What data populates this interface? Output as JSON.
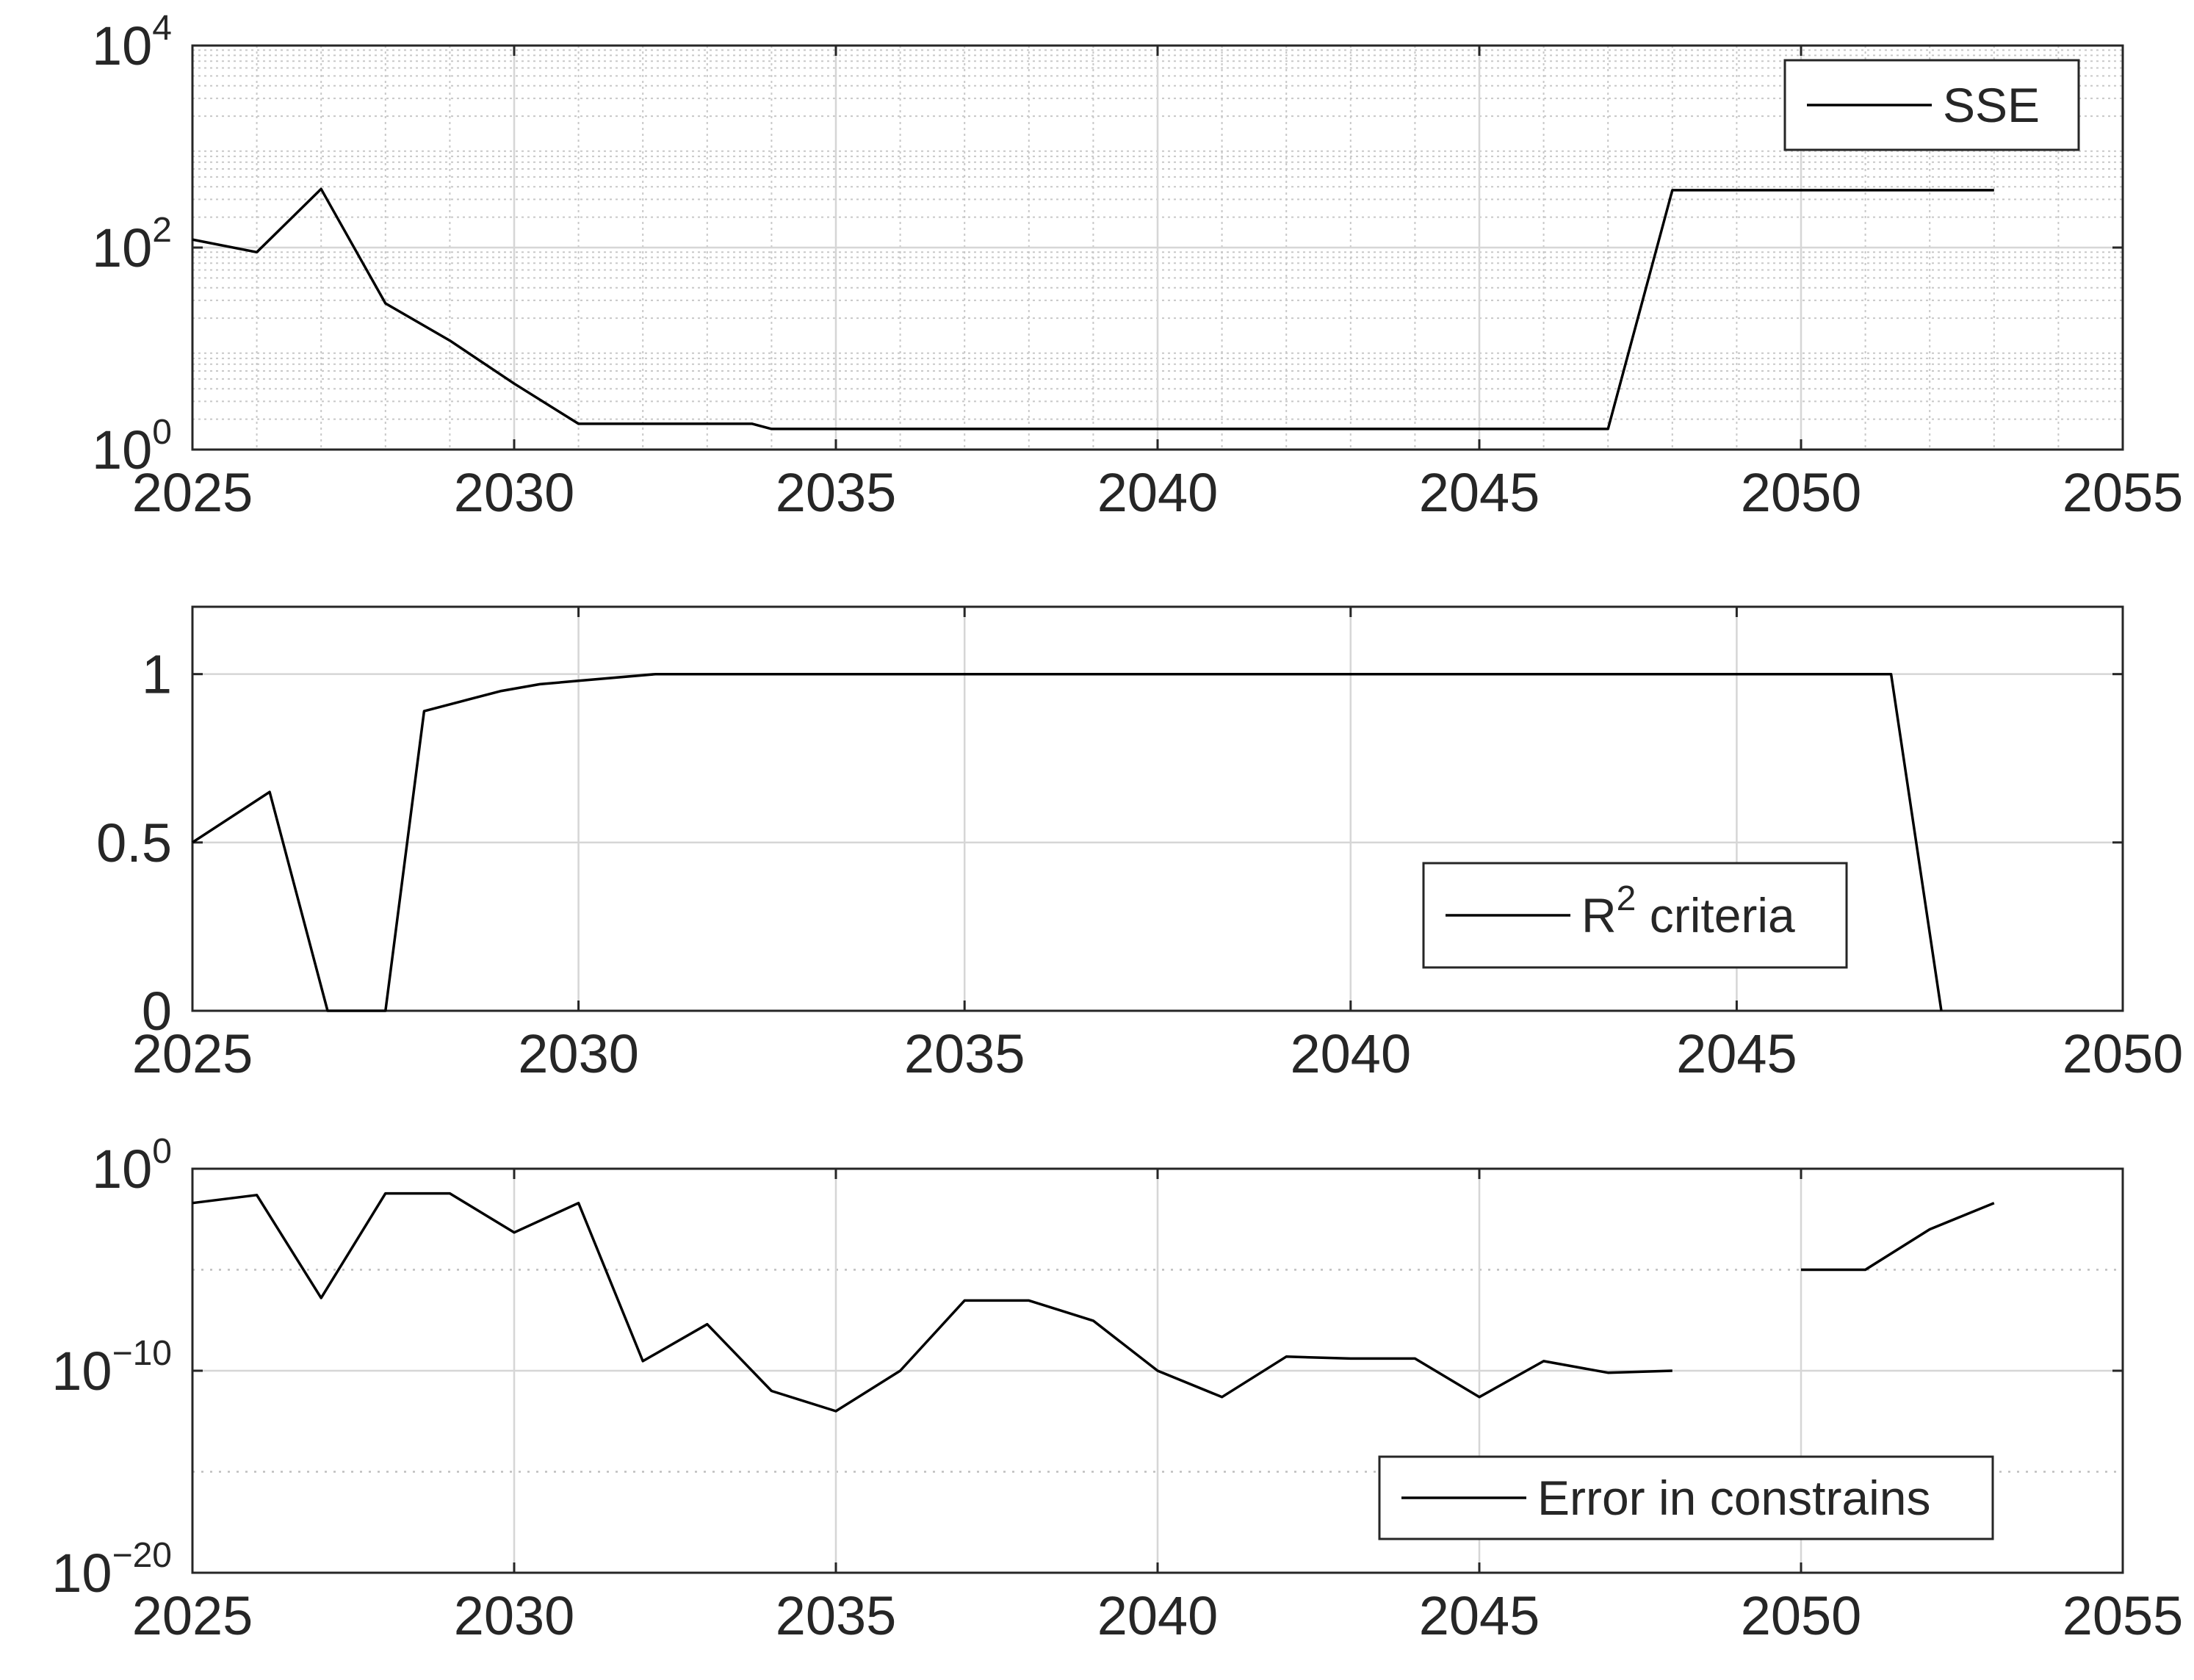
{
  "chart_data": [
    {
      "type": "line",
      "title": "",
      "xlabel": "",
      "ylabel": "",
      "x_scale": "linear",
      "y_scale": "log",
      "xlim": [
        2025,
        2055
      ],
      "ylim": [
        1,
        10000
      ],
      "xticks": [
        "2025",
        "2030",
        "2035",
        "2040",
        "2045",
        "2050",
        "2055"
      ],
      "yticks": [
        {
          "base": "10",
          "exp": "0"
        },
        {
          "base": "10",
          "exp": "2"
        },
        {
          "base": "10",
          "exp": "4"
        }
      ],
      "grid": "major and minor",
      "legend_position": "top-right",
      "series": [
        {
          "name": "SSE",
          "color": "#000000",
          "x": [
            2025,
            2026,
            2027,
            2028,
            2029,
            2030,
            2031,
            2033.7,
            2034,
            2047,
            2048,
            2049,
            2050,
            2051,
            2052,
            2053
          ],
          "y": [
            120,
            90,
            380,
            28,
            12,
            4.5,
            1.8,
            1.8,
            1.6,
            1.6,
            370,
            370,
            370,
            370,
            370,
            370
          ]
        }
      ]
    },
    {
      "type": "line",
      "title": "",
      "xlabel": "",
      "ylabel": "",
      "x_scale": "linear",
      "y_scale": "linear",
      "xlim": [
        2025,
        2050
      ],
      "ylim": [
        0,
        1.2
      ],
      "xticks": [
        "2025",
        "2030",
        "2035",
        "2040",
        "2045",
        "2050"
      ],
      "yticks": [
        "0",
        "0.5",
        "1"
      ],
      "grid": "major",
      "legend_position": "center-right",
      "series": [
        {
          "name": "R² criteria",
          "name_base": "R",
          "name_sup": "2",
          "name_rest": " criteria",
          "color": "#000000",
          "x": [
            2025,
            2026,
            2026.75,
            2027.5,
            2028,
            2028.5,
            2029,
            2029.5,
            2030,
            2031,
            2035,
            2040,
            2045,
            2047,
            2047.65
          ],
          "y": [
            0.5,
            0.65,
            0,
            0,
            0.89,
            0.92,
            0.95,
            0.97,
            0.98,
            1.0,
            1.0,
            1.0,
            1.0,
            1.0,
            0
          ]
        }
      ]
    },
    {
      "type": "line",
      "title": "",
      "xlabel": "",
      "ylabel": "",
      "x_scale": "linear",
      "y_scale": "log",
      "xlim": [
        2025,
        2055
      ],
      "ylim": [
        1e-20,
        1
      ],
      "xticks": [
        "2025",
        "2030",
        "2035",
        "2040",
        "2045",
        "2050",
        "2055"
      ],
      "yticks": [
        {
          "base": "10",
          "exp": "−20"
        },
        {
          "base": "10",
          "exp": "−10"
        },
        {
          "base": "10",
          "exp": "0"
        }
      ],
      "grid": "major and minor",
      "legend_position": "bottom-right",
      "series": [
        {
          "name": "Error in constrains",
          "color": "#000000",
          "segments": [
            {
              "x": [
                2025,
                2026,
                2027,
                2028,
                2029,
                2030,
                2031,
                2032,
                2033,
                2034,
                2035,
                2036,
                2037,
                2038,
                2039,
                2040,
                2041,
                2042,
                2043,
                2044,
                2045,
                2046,
                2047,
                2048
              ],
              "y": [
                0.02,
                0.05,
                4e-07,
                0.06,
                0.06,
                0.0007,
                0.02,
                3e-10,
                2e-08,
                1e-11,
                1e-12,
                1e-10,
                3e-07,
                3e-07,
                3e-08,
                1e-10,
                5e-12,
                5e-10,
                4e-10,
                4e-10,
                5e-12,
                3e-10,
                8e-11,
                1e-10
              ]
            },
            {
              "x": [
                2050,
                2051,
                2052,
                2053
              ],
              "y": [
                1e-05,
                1e-05,
                0.001,
                0.02
              ]
            }
          ]
        }
      ]
    }
  ]
}
